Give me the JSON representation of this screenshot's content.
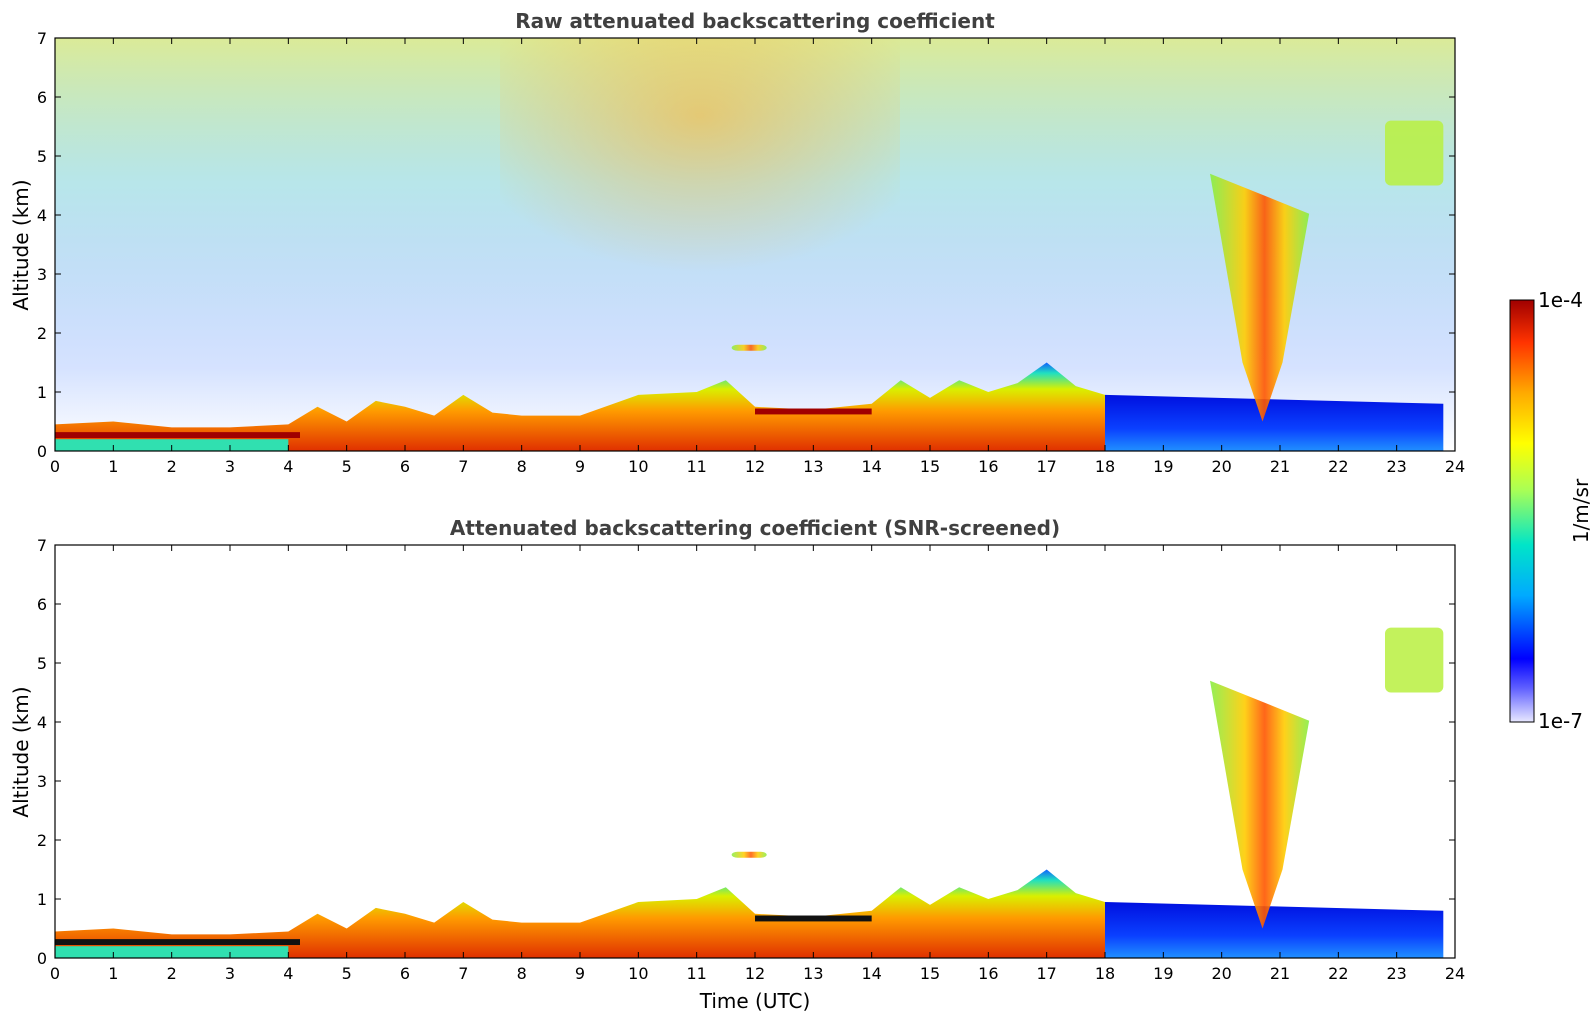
{
  "chart_data": [
    {
      "type": "heatmap",
      "title": "Raw attenuated backscattering coefficient",
      "xlabel": "",
      "ylabel": "Altitude (km)",
      "xlim": [
        0,
        24
      ],
      "ylim": [
        0,
        7
      ],
      "x_ticks": [
        "0",
        "1",
        "2",
        "3",
        "4",
        "5",
        "6",
        "7",
        "8",
        "9",
        "10",
        "11",
        "12",
        "13",
        "14",
        "15",
        "16",
        "17",
        "18",
        "19",
        "20",
        "21",
        "22",
        "23",
        "24"
      ],
      "y_ticks": [
        "0",
        "1",
        "2",
        "3",
        "4",
        "5",
        "6",
        "7"
      ],
      "data_end_time": 23.8,
      "boundary_layer_top_km": [
        [
          0,
          0.45
        ],
        [
          1.0,
          0.5
        ],
        [
          2.0,
          0.4
        ],
        [
          3.0,
          0.4
        ],
        [
          4.0,
          0.45
        ],
        [
          4.5,
          0.75
        ],
        [
          5.0,
          0.5
        ],
        [
          5.5,
          0.85
        ],
        [
          6.0,
          0.75
        ],
        [
          6.5,
          0.6
        ],
        [
          7.0,
          0.95
        ],
        [
          7.5,
          0.65
        ],
        [
          8.0,
          0.6
        ],
        [
          9.0,
          0.6
        ],
        [
          10.0,
          0.95
        ],
        [
          11.0,
          1.0
        ],
        [
          11.5,
          1.2
        ],
        [
          12.0,
          0.75
        ],
        [
          13.0,
          0.7
        ],
        [
          14.0,
          0.8
        ],
        [
          14.5,
          1.2
        ],
        [
          15.0,
          0.9
        ],
        [
          15.5,
          1.2
        ],
        [
          16.0,
          1.0
        ],
        [
          16.5,
          1.15
        ],
        [
          17.0,
          1.5
        ],
        [
          17.5,
          1.1
        ],
        [
          18.0,
          0.95
        ],
        [
          23.8,
          0.8
        ]
      ],
      "cloud_features": [
        {
          "time": [
            19.8,
            21.5
          ],
          "altitude_km": [
            1.5,
            4.7
          ],
          "level": "high"
        },
        {
          "time": [
            22.8,
            23.8
          ],
          "altitude_km": [
            4.5,
            5.6
          ],
          "level": "medium"
        },
        {
          "time": [
            11.6,
            12.2
          ],
          "altitude_km": [
            1.7,
            1.8
          ],
          "level": "high"
        }
      ]
    },
    {
      "type": "heatmap",
      "title": "Attenuated backscattering coefficient (SNR-screened)",
      "xlabel": "Time (UTC)",
      "ylabel": "Altitude (km)",
      "xlim": [
        0,
        24
      ],
      "ylim": [
        0,
        7
      ],
      "x_ticks": [
        "0",
        "1",
        "2",
        "3",
        "4",
        "5",
        "6",
        "7",
        "8",
        "9",
        "10",
        "11",
        "12",
        "13",
        "14",
        "15",
        "16",
        "17",
        "18",
        "19",
        "20",
        "21",
        "22",
        "23",
        "24"
      ],
      "y_ticks": [
        "0",
        "1",
        "2",
        "3",
        "4",
        "5",
        "6",
        "7"
      ]
    }
  ],
  "colorbar": {
    "label": "1/m/sr",
    "max_label": "1e-4",
    "min_label": "1e-7",
    "scale": "log",
    "colors": [
      "#e8e8ff",
      "#0000ff",
      "#00aaff",
      "#00e5c8",
      "#aaff55",
      "#ffff00",
      "#ffaa00",
      "#ff3300",
      "#a00000"
    ]
  }
}
